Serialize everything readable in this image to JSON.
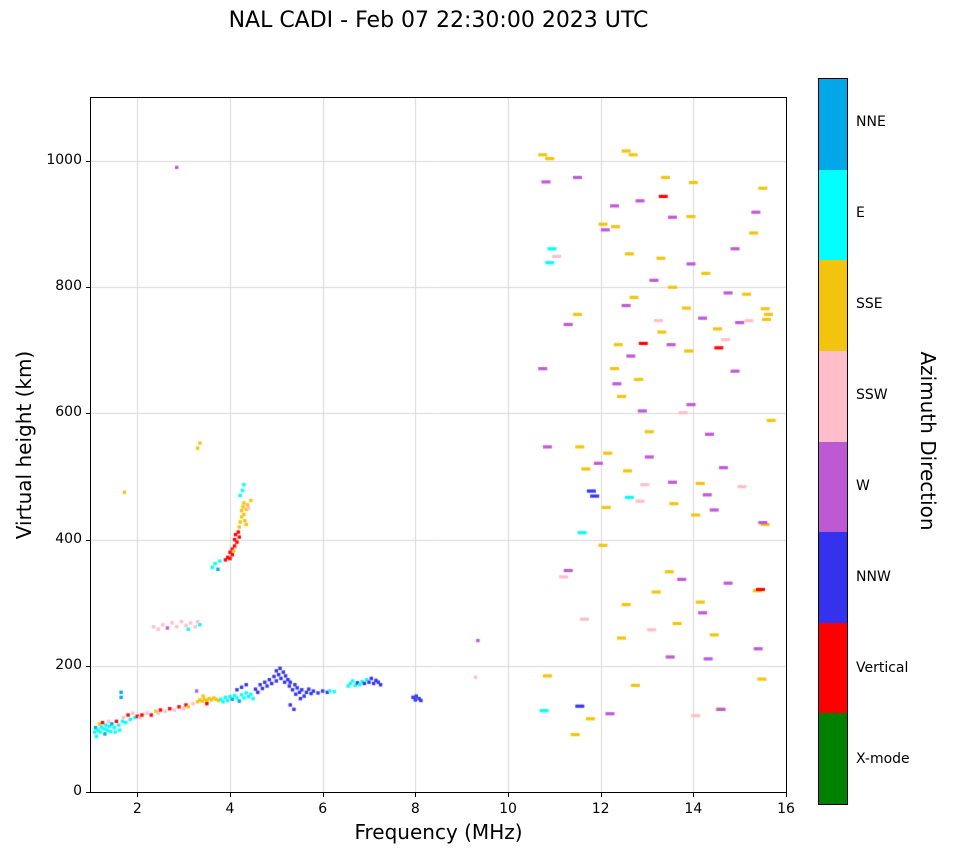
{
  "chart_data": {
    "type": "scatter",
    "title": "NAL CADI - Feb 07 22:30:00 2023 UTC",
    "xlabel": "Frequency (MHz)",
    "ylabel": "Virtual height (km)",
    "colorbar_label": "Azimuth Direction",
    "xlim": [
      1,
      16
    ],
    "ylim": [
      0,
      1100
    ],
    "xticks": [
      2,
      4,
      6,
      8,
      10,
      12,
      14,
      16
    ],
    "yticks": [
      0,
      200,
      400,
      600,
      800,
      1000
    ],
    "grid": true,
    "grid_color": "#d8d8d8",
    "legend_position": "right-colorbar",
    "categories": [
      {
        "name": "NNE",
        "color": "#00a8e8"
      },
      {
        "name": "E",
        "color": "#00ffff"
      },
      {
        "name": "SSE",
        "color": "#f2c40e"
      },
      {
        "name": "SSW",
        "color": "#ffbeca"
      },
      {
        "name": "W",
        "color": "#bd59d3"
      },
      {
        "name": "NNW",
        "color": "#3333ee"
      },
      {
        "name": "Vertical",
        "color": "#ff0000"
      },
      {
        "name": "X-mode",
        "color": "#008000"
      }
    ],
    "points": [
      [
        1.08,
        95,
        "E"
      ],
      [
        1.1,
        102,
        "NNE"
      ],
      [
        1.12,
        88,
        "E"
      ],
      [
        1.15,
        98,
        "E"
      ],
      [
        1.18,
        108,
        "SSE"
      ],
      [
        1.2,
        95,
        "E"
      ],
      [
        1.22,
        103,
        "E"
      ],
      [
        1.25,
        110,
        "Vertical"
      ],
      [
        1.28,
        100,
        "E"
      ],
      [
        1.3,
        92,
        "NNE"
      ],
      [
        1.32,
        106,
        "E"
      ],
      [
        1.35,
        98,
        "E"
      ],
      [
        1.38,
        112,
        "SSW"
      ],
      [
        1.4,
        104,
        "E"
      ],
      [
        1.42,
        96,
        "E"
      ],
      [
        1.45,
        108,
        "NNE"
      ],
      [
        1.5,
        102,
        "E"
      ],
      [
        1.52,
        95,
        "E"
      ],
      [
        1.55,
        112,
        "Vertical"
      ],
      [
        1.6,
        106,
        "E"
      ],
      [
        1.62,
        98,
        "E"
      ],
      [
        1.65,
        150,
        "NNE"
      ],
      [
        1.65,
        158,
        "NNE"
      ],
      [
        1.68,
        112,
        "E"
      ],
      [
        1.7,
        118,
        "SSW"
      ],
      [
        1.75,
        110,
        "E"
      ],
      [
        1.8,
        122,
        "Vertical"
      ],
      [
        1.85,
        115,
        "E"
      ],
      [
        1.9,
        125,
        "SSW"
      ],
      [
        1.95,
        118,
        "E"
      ],
      [
        2.0,
        120,
        "Vertical"
      ],
      [
        2.05,
        118,
        "SSW"
      ],
      [
        2.1,
        122,
        "Vertical"
      ],
      [
        2.2,
        125,
        "SSW"
      ],
      [
        2.3,
        122,
        "Vertical"
      ],
      [
        2.4,
        128,
        "SSE"
      ],
      [
        2.45,
        125,
        "SSW"
      ],
      [
        2.5,
        130,
        "Vertical"
      ],
      [
        2.6,
        128,
        "SSW"
      ],
      [
        2.7,
        132,
        "Vertical"
      ],
      [
        2.8,
        130,
        "SSW"
      ],
      [
        2.9,
        135,
        "Vertical"
      ],
      [
        3.0,
        132,
        "SSW"
      ],
      [
        3.05,
        138,
        "Vertical"
      ],
      [
        3.1,
        135,
        "SSE"
      ],
      [
        3.2,
        140,
        "SSW"
      ],
      [
        2.35,
        262,
        "SSW"
      ],
      [
        2.45,
        258,
        "SSW"
      ],
      [
        2.55,
        265,
        "SSW"
      ],
      [
        2.65,
        260,
        "W"
      ],
      [
        2.75,
        268,
        "SSW"
      ],
      [
        2.85,
        262,
        "SSW"
      ],
      [
        2.95,
        270,
        "SSW"
      ],
      [
        3.05,
        264,
        "SSW"
      ],
      [
        3.1,
        258,
        "E"
      ],
      [
        3.15,
        268,
        "SSW"
      ],
      [
        3.25,
        262,
        "SSW"
      ],
      [
        3.3,
        270,
        "SSW"
      ],
      [
        3.35,
        265,
        "E"
      ],
      [
        2.85,
        990,
        "W"
      ],
      [
        1.72,
        475,
        "SSE"
      ],
      [
        3.3,
        545,
        "SSE"
      ],
      [
        3.35,
        553,
        "SSE"
      ],
      [
        9.35,
        240,
        "W"
      ],
      [
        9.3,
        182,
        "SSW"
      ],
      [
        3.3,
        143,
        "SSE"
      ],
      [
        3.35,
        146,
        "SSE"
      ],
      [
        3.4,
        144,
        "SSE"
      ],
      [
        3.45,
        147,
        "SSE"
      ],
      [
        3.5,
        145,
        "SSE"
      ],
      [
        3.55,
        148,
        "SSE"
      ],
      [
        3.6,
        146,
        "SSE"
      ],
      [
        3.65,
        149,
        "SSE"
      ],
      [
        3.7,
        147,
        "SSE"
      ],
      [
        3.75,
        145,
        "SSE"
      ],
      [
        3.42,
        152,
        "SSE"
      ],
      [
        3.5,
        140,
        "Vertical"
      ],
      [
        3.28,
        160,
        "W"
      ],
      [
        3.8,
        147,
        "E"
      ],
      [
        3.85,
        143,
        "E"
      ],
      [
        3.9,
        150,
        "E"
      ],
      [
        3.95,
        145,
        "E"
      ],
      [
        4.0,
        151,
        "E"
      ],
      [
        4.05,
        147,
        "NNE"
      ],
      [
        4.1,
        153,
        "E"
      ],
      [
        4.15,
        149,
        "E"
      ],
      [
        4.2,
        144,
        "NNE"
      ],
      [
        4.25,
        154,
        "E"
      ],
      [
        4.3,
        149,
        "E"
      ],
      [
        4.35,
        157,
        "E"
      ],
      [
        4.4,
        151,
        "E"
      ],
      [
        4.45,
        155,
        "E"
      ],
      [
        4.5,
        148,
        "E"
      ],
      [
        4.15,
        162,
        "NNW"
      ],
      [
        4.25,
        166,
        "NNW"
      ],
      [
        4.35,
        170,
        "NNW"
      ],
      [
        4.55,
        163,
        "NNW"
      ],
      [
        4.6,
        158,
        "NNW"
      ],
      [
        4.65,
        170,
        "NNW"
      ],
      [
        4.7,
        164,
        "NNW"
      ],
      [
        4.75,
        174,
        "NNW"
      ],
      [
        4.8,
        168,
        "NNW"
      ],
      [
        4.85,
        178,
        "NNW"
      ],
      [
        4.9,
        172,
        "NNW"
      ],
      [
        4.95,
        183,
        "NNW"
      ],
      [
        5.0,
        176,
        "NNW"
      ],
      [
        5.0,
        192,
        "NNW"
      ],
      [
        5.05,
        186,
        "NNW"
      ],
      [
        5.08,
        196,
        "NNW"
      ],
      [
        5.1,
        180,
        "NNW"
      ],
      [
        5.15,
        190,
        "NNW"
      ],
      [
        5.18,
        174,
        "NNW"
      ],
      [
        5.2,
        184,
        "NNW"
      ],
      [
        5.25,
        178,
        "NNW"
      ],
      [
        5.28,
        168,
        "NNW"
      ],
      [
        5.3,
        174,
        "NNW"
      ],
      [
        5.3,
        138,
        "NNW"
      ],
      [
        5.35,
        162,
        "NNW"
      ],
      [
        5.38,
        131,
        "NNW"
      ],
      [
        5.4,
        170,
        "NNW"
      ],
      [
        5.42,
        155,
        "NNW"
      ],
      [
        5.45,
        165,
        "NNW"
      ],
      [
        5.5,
        158,
        "NNW"
      ],
      [
        5.52,
        148,
        "NNW"
      ],
      [
        5.55,
        162,
        "NNW"
      ],
      [
        5.6,
        152,
        "NNW"
      ],
      [
        5.65,
        158,
        "NNW"
      ],
      [
        5.7,
        163,
        "NNW"
      ],
      [
        5.75,
        156,
        "NNW"
      ],
      [
        5.8,
        160,
        "NNW"
      ],
      [
        5.9,
        157,
        "NNW"
      ],
      [
        6.0,
        160,
        "NNW"
      ],
      [
        6.1,
        158,
        "NNW"
      ],
      [
        6.15,
        160,
        "E"
      ],
      [
        6.25,
        159,
        "E"
      ],
      [
        6.55,
        168,
        "E"
      ],
      [
        6.6,
        172,
        "E"
      ],
      [
        6.65,
        176,
        "E"
      ],
      [
        6.7,
        169,
        "E"
      ],
      [
        6.75,
        173,
        "NNW"
      ],
      [
        6.8,
        170,
        "E"
      ],
      [
        6.85,
        175,
        "E"
      ],
      [
        6.9,
        172,
        "NNW"
      ],
      [
        6.95,
        178,
        "E"
      ],
      [
        7.0,
        174,
        "NNW"
      ],
      [
        7.05,
        180,
        "NNW"
      ],
      [
        7.1,
        172,
        "NNW"
      ],
      [
        7.15,
        177,
        "NNW"
      ],
      [
        7.2,
        174,
        "NNW"
      ],
      [
        7.25,
        170,
        "NNW"
      ],
      [
        7.95,
        150,
        "NNW"
      ],
      [
        8.0,
        146,
        "NNW"
      ],
      [
        8.02,
        152,
        "NNW"
      ],
      [
        8.08,
        148,
        "NNW"
      ],
      [
        8.12,
        145,
        "NNW"
      ],
      [
        3.62,
        356,
        "E"
      ],
      [
        3.68,
        362,
        "E"
      ],
      [
        3.74,
        353,
        "NNE"
      ],
      [
        3.78,
        366,
        "E"
      ],
      [
        3.9,
        368,
        "Vertical"
      ],
      [
        3.95,
        372,
        "Vertical"
      ],
      [
        4.0,
        370,
        "Vertical"
      ],
      [
        4.0,
        380,
        "Vertical"
      ],
      [
        4.05,
        385,
        "Vertical"
      ],
      [
        4.05,
        376,
        "Vertical"
      ],
      [
        4.08,
        382,
        "SSE"
      ],
      [
        4.1,
        390,
        "Vertical"
      ],
      [
        4.1,
        400,
        "Vertical"
      ],
      [
        4.12,
        408,
        "Vertical"
      ],
      [
        4.15,
        396,
        "Vertical"
      ],
      [
        4.18,
        412,
        "Vertical"
      ],
      [
        4.2,
        404,
        "Vertical"
      ],
      [
        4.2,
        420,
        "SSE"
      ],
      [
        4.22,
        428,
        "SSE"
      ],
      [
        4.25,
        436,
        "SSE"
      ],
      [
        4.25,
        446,
        "SSE"
      ],
      [
        4.28,
        452,
        "SSE"
      ],
      [
        4.3,
        440,
        "SSE"
      ],
      [
        4.3,
        458,
        "SSE"
      ],
      [
        4.32,
        430,
        "SSE"
      ],
      [
        4.35,
        448,
        "SSE"
      ],
      [
        4.35,
        424,
        "SSE"
      ],
      [
        4.38,
        455,
        "SSE"
      ],
      [
        4.4,
        450,
        "SSW"
      ],
      [
        4.45,
        462,
        "SSE"
      ],
      [
        4.22,
        470,
        "E"
      ],
      [
        4.27,
        478,
        "E"
      ],
      [
        4.3,
        487,
        "E"
      ]
    ],
    "dashes": [
      [
        10.75,
        1010,
        "SSE"
      ],
      [
        10.9,
        1004,
        "SSE"
      ],
      [
        12.55,
        1016,
        "SSE"
      ],
      [
        12.7,
        1010,
        "SSE"
      ],
      [
        13.4,
        974,
        "SSE"
      ],
      [
        14.0,
        966,
        "SSE"
      ],
      [
        15.5,
        957,
        "SSE"
      ],
      [
        13.95,
        912,
        "SSE"
      ],
      [
        12.05,
        900,
        "SSE"
      ],
      [
        12.32,
        896,
        "SSE"
      ],
      [
        15.3,
        886,
        "SSE"
      ],
      [
        12.62,
        853,
        "SSE"
      ],
      [
        13.3,
        846,
        "SSE"
      ],
      [
        14.27,
        822,
        "SSE"
      ],
      [
        13.55,
        800,
        "SSE"
      ],
      [
        15.15,
        789,
        "SSE"
      ],
      [
        12.72,
        784,
        "SSE"
      ],
      [
        13.85,
        767,
        "SSE"
      ],
      [
        15.55,
        766,
        "SSE"
      ],
      [
        15.62,
        757,
        "SSE"
      ],
      [
        15.58,
        749,
        "SSE"
      ],
      [
        11.5,
        757,
        "SSE"
      ],
      [
        13.32,
        729,
        "SSE"
      ],
      [
        14.52,
        734,
        "SSE"
      ],
      [
        12.38,
        709,
        "SSE"
      ],
      [
        13.9,
        699,
        "SSE"
      ],
      [
        12.3,
        671,
        "SSE"
      ],
      [
        12.82,
        654,
        "SSE"
      ],
      [
        12.45,
        627,
        "SSE"
      ],
      [
        15.68,
        589,
        "SSE"
      ],
      [
        13.05,
        571,
        "SSE"
      ],
      [
        11.55,
        547,
        "SSE"
      ],
      [
        12.15,
        537,
        "SSE"
      ],
      [
        12.58,
        509,
        "SSE"
      ],
      [
        11.68,
        512,
        "SSE"
      ],
      [
        14.15,
        489,
        "SSE"
      ],
      [
        12.12,
        451,
        "SSE"
      ],
      [
        13.58,
        457,
        "SSE"
      ],
      [
        14.05,
        439,
        "SSE"
      ],
      [
        15.55,
        424,
        "SSE"
      ],
      [
        12.05,
        391,
        "SSE"
      ],
      [
        13.48,
        349,
        "SSE"
      ],
      [
        15.38,
        319,
        "SSE"
      ],
      [
        13.2,
        317,
        "SSE"
      ],
      [
        14.15,
        301,
        "SSE"
      ],
      [
        12.55,
        297,
        "SSE"
      ],
      [
        13.65,
        267,
        "SSE"
      ],
      [
        12.45,
        244,
        "SSE"
      ],
      [
        14.45,
        249,
        "SSE"
      ],
      [
        15.48,
        179,
        "SSE"
      ],
      [
        12.75,
        169,
        "SSE"
      ],
      [
        14.58,
        131,
        "SSE"
      ],
      [
        11.78,
        116,
        "SSE"
      ],
      [
        10.85,
        184,
        "SSE"
      ],
      [
        11.45,
        91,
        "SSE"
      ],
      [
        10.82,
        967,
        "W"
      ],
      [
        11.5,
        974,
        "W"
      ],
      [
        12.3,
        929,
        "W"
      ],
      [
        12.85,
        937,
        "W"
      ],
      [
        13.55,
        911,
        "W"
      ],
      [
        15.35,
        919,
        "W"
      ],
      [
        12.1,
        891,
        "W"
      ],
      [
        14.9,
        861,
        "W"
      ],
      [
        13.95,
        837,
        "W"
      ],
      [
        13.15,
        811,
        "W"
      ],
      [
        14.75,
        791,
        "W"
      ],
      [
        12.55,
        771,
        "W"
      ],
      [
        14.2,
        751,
        "W"
      ],
      [
        15.0,
        744,
        "W"
      ],
      [
        11.3,
        741,
        "W"
      ],
      [
        13.52,
        709,
        "W"
      ],
      [
        12.65,
        691,
        "W"
      ],
      [
        10.75,
        671,
        "W"
      ],
      [
        14.9,
        667,
        "W"
      ],
      [
        12.35,
        647,
        "W"
      ],
      [
        12.9,
        604,
        "W"
      ],
      [
        13.95,
        614,
        "W"
      ],
      [
        14.35,
        567,
        "W"
      ],
      [
        10.85,
        547,
        "W"
      ],
      [
        13.05,
        531,
        "W"
      ],
      [
        11.95,
        521,
        "W"
      ],
      [
        14.65,
        514,
        "W"
      ],
      [
        13.55,
        491,
        "W"
      ],
      [
        14.3,
        471,
        "W"
      ],
      [
        14.45,
        447,
        "W"
      ],
      [
        15.5,
        427,
        "W"
      ],
      [
        11.3,
        351,
        "W"
      ],
      [
        13.75,
        337,
        "W"
      ],
      [
        14.75,
        331,
        "W"
      ],
      [
        14.2,
        284,
        "W"
      ],
      [
        15.4,
        227,
        "W"
      ],
      [
        13.5,
        214,
        "W"
      ],
      [
        14.32,
        211,
        "W"
      ],
      [
        14.6,
        131,
        "W"
      ],
      [
        12.2,
        124,
        "W"
      ],
      [
        11.05,
        849,
        "SSW"
      ],
      [
        13.25,
        747,
        "SSW"
      ],
      [
        15.2,
        747,
        "SSW"
      ],
      [
        14.7,
        717,
        "SSW"
      ],
      [
        13.78,
        601,
        "SSW"
      ],
      [
        12.95,
        487,
        "SSW"
      ],
      [
        15.05,
        484,
        "SSW"
      ],
      [
        12.85,
        461,
        "SSW"
      ],
      [
        11.2,
        341,
        "SSW"
      ],
      [
        13.1,
        257,
        "SSW"
      ],
      [
        11.65,
        274,
        "SSW"
      ],
      [
        14.05,
        121,
        "SSW"
      ],
      [
        10.95,
        861,
        "E"
      ],
      [
        10.9,
        839,
        "E"
      ],
      [
        11.6,
        411,
        "E"
      ],
      [
        12.62,
        467,
        "E"
      ],
      [
        10.78,
        129,
        "E"
      ],
      [
        11.8,
        477,
        "NNW"
      ],
      [
        11.87,
        469,
        "NNW"
      ],
      [
        11.55,
        136,
        "NNW"
      ],
      [
        13.35,
        944,
        "Vertical"
      ],
      [
        14.55,
        704,
        "Vertical"
      ],
      [
        12.92,
        711,
        "Vertical"
      ],
      [
        15.45,
        321,
        "Vertical"
      ]
    ]
  }
}
